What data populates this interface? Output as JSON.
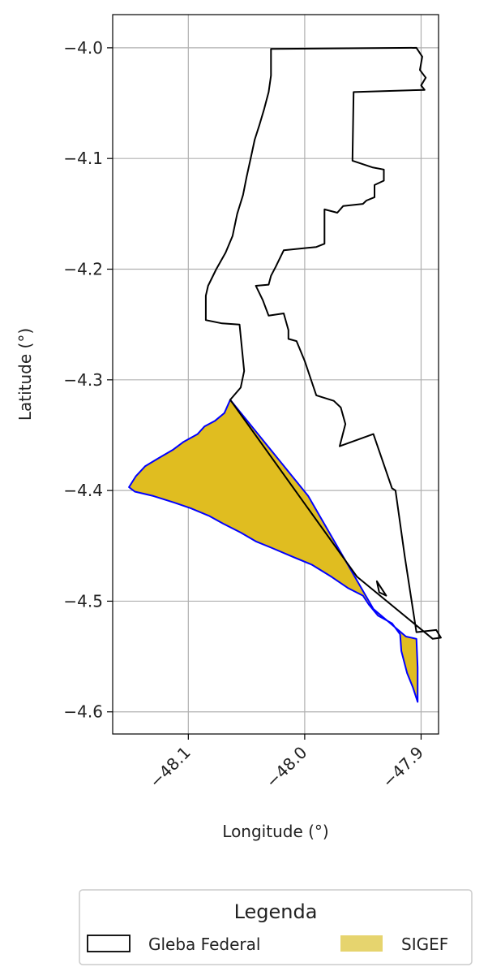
{
  "chart_data": {
    "type": "map",
    "xlabel": "Longitude (°)",
    "ylabel": "Latitude (°)",
    "xlim": [
      -48.165,
      -47.885
    ],
    "ylim": [
      -4.62,
      -3.97
    ],
    "xticks": [
      -48.1,
      -48.0,
      -47.9
    ],
    "xtick_labels": [
      "−48.1",
      "−48.0",
      "−47.9"
    ],
    "yticks": [
      -4.0,
      -4.1,
      -4.2,
      -4.3,
      -4.4,
      -4.5,
      -4.6
    ],
    "ytick_labels": [
      "−4.0",
      "−4.1",
      "−4.2",
      "−4.3",
      "−4.4",
      "−4.5",
      "−4.6"
    ],
    "grid": true,
    "legend": {
      "title": "Legenda",
      "placement": "bottom-center",
      "entries": [
        {
          "label": "Gleba Federal",
          "type": "outline",
          "edge_color": "#000000",
          "fill": "none"
        },
        {
          "label": "SIGEF",
          "type": "fill",
          "fill": "#e6d46e"
        }
      ]
    },
    "layers": [
      {
        "name": "SIGEF",
        "fill": "#e0bd20",
        "stroke": "#0000ff",
        "polygon": [
          [
            -48.064,
            -4.318
          ],
          [
            -48.069,
            -4.33
          ],
          [
            -48.077,
            -4.337
          ],
          [
            -48.086,
            -4.342
          ],
          [
            -48.092,
            -4.349
          ],
          [
            -48.104,
            -4.356
          ],
          [
            -48.113,
            -4.363
          ],
          [
            -48.126,
            -4.371
          ],
          [
            -48.137,
            -4.378
          ],
          [
            -48.145,
            -4.387
          ],
          [
            -48.151,
            -4.397
          ],
          [
            -48.146,
            -4.401
          ],
          [
            -48.13,
            -4.405
          ],
          [
            -48.112,
            -4.411
          ],
          [
            -48.098,
            -4.416
          ],
          [
            -48.082,
            -4.423
          ],
          [
            -48.07,
            -4.43
          ],
          [
            -48.055,
            -4.438
          ],
          [
            -48.042,
            -4.446
          ],
          [
            -48.028,
            -4.452
          ],
          [
            -48.01,
            -4.46
          ],
          [
            -47.994,
            -4.467
          ],
          [
            -47.977,
            -4.478
          ],
          [
            -47.963,
            -4.488
          ],
          [
            -47.95,
            -4.495
          ],
          [
            -47.945,
            -4.503
          ],
          [
            -47.937,
            -4.513
          ],
          [
            -47.925,
            -4.52
          ],
          [
            -47.918,
            -4.53
          ],
          [
            -47.917,
            -4.545
          ],
          [
            -47.912,
            -4.565
          ],
          [
            -47.907,
            -4.578
          ],
          [
            -47.903,
            -4.591
          ],
          [
            -47.903,
            -4.56
          ],
          [
            -47.904,
            -4.534
          ],
          [
            -47.913,
            -4.532
          ],
          [
            -47.941,
            -4.507
          ],
          [
            -47.997,
            -4.405
          ],
          [
            -48.064,
            -4.318
          ]
        ]
      },
      {
        "name": "Gleba Federal",
        "fill": "none",
        "stroke": "#000000",
        "polygon": [
          [
            -48.029,
            -4.001
          ],
          [
            -47.904,
            -4.0
          ],
          [
            -47.899,
            -4.008
          ],
          [
            -47.901,
            -4.02
          ],
          [
            -47.896,
            -4.027
          ],
          [
            -47.9,
            -4.034
          ],
          [
            -47.897,
            -4.038
          ],
          [
            -47.958,
            -4.04
          ],
          [
            -47.959,
            -4.102
          ],
          [
            -47.942,
            -4.108
          ],
          [
            -47.932,
            -4.11
          ],
          [
            -47.932,
            -4.12
          ],
          [
            -47.94,
            -4.124
          ],
          [
            -47.94,
            -4.135
          ],
          [
            -47.947,
            -4.138
          ],
          [
            -47.95,
            -4.141
          ],
          [
            -47.967,
            -4.143
          ],
          [
            -47.972,
            -4.149
          ],
          [
            -47.983,
            -4.146
          ],
          [
            -47.983,
            -4.177
          ],
          [
            -47.99,
            -4.18
          ],
          [
            -48.018,
            -4.183
          ],
          [
            -48.025,
            -4.198
          ],
          [
            -48.029,
            -4.206
          ],
          [
            -48.031,
            -4.214
          ],
          [
            -48.042,
            -4.215
          ],
          [
            -48.036,
            -4.228
          ],
          [
            -48.031,
            -4.242
          ],
          [
            -48.018,
            -4.24
          ],
          [
            -48.014,
            -4.255
          ],
          [
            -48.014,
            -4.263
          ],
          [
            -48.007,
            -4.265
          ],
          [
            -48.0,
            -4.283
          ],
          [
            -47.99,
            -4.314
          ],
          [
            -47.975,
            -4.319
          ],
          [
            -47.969,
            -4.325
          ],
          [
            -47.965,
            -4.34
          ],
          [
            -47.97,
            -4.36
          ],
          [
            -47.941,
            -4.349
          ],
          [
            -47.925,
            -4.398
          ],
          [
            -47.922,
            -4.4
          ],
          [
            -47.914,
            -4.46
          ],
          [
            -47.904,
            -4.528
          ],
          [
            -47.887,
            -4.526
          ],
          [
            -47.883,
            -4.533
          ],
          [
            -47.89,
            -4.534
          ],
          [
            -47.955,
            -4.478
          ],
          [
            -48.064,
            -4.318
          ],
          [
            -48.055,
            -4.307
          ],
          [
            -48.052,
            -4.292
          ],
          [
            -48.056,
            -4.25
          ],
          [
            -48.071,
            -4.249
          ],
          [
            -48.085,
            -4.246
          ],
          [
            -48.085,
            -4.234
          ],
          [
            -48.085,
            -4.224
          ],
          [
            -48.083,
            -4.215
          ],
          [
            -48.076,
            -4.2
          ],
          [
            -48.068,
            -4.185
          ],
          [
            -48.062,
            -4.17
          ],
          [
            -48.058,
            -4.15
          ],
          [
            -48.053,
            -4.133
          ],
          [
            -48.05,
            -4.117
          ],
          [
            -48.046,
            -4.098
          ],
          [
            -48.043,
            -4.083
          ],
          [
            -48.039,
            -4.07
          ],
          [
            -48.035,
            -4.056
          ],
          [
            -48.031,
            -4.04
          ],
          [
            -48.029,
            -4.025
          ],
          [
            -48.029,
            -4.001
          ]
        ]
      },
      {
        "name": "Gleba Federal",
        "fill": "none",
        "stroke": "#000000",
        "polygon": [
          [
            -47.938,
            -4.482
          ],
          [
            -47.936,
            -4.492
          ],
          [
            -47.93,
            -4.495
          ],
          [
            -47.938,
            -4.482
          ]
        ]
      }
    ]
  }
}
